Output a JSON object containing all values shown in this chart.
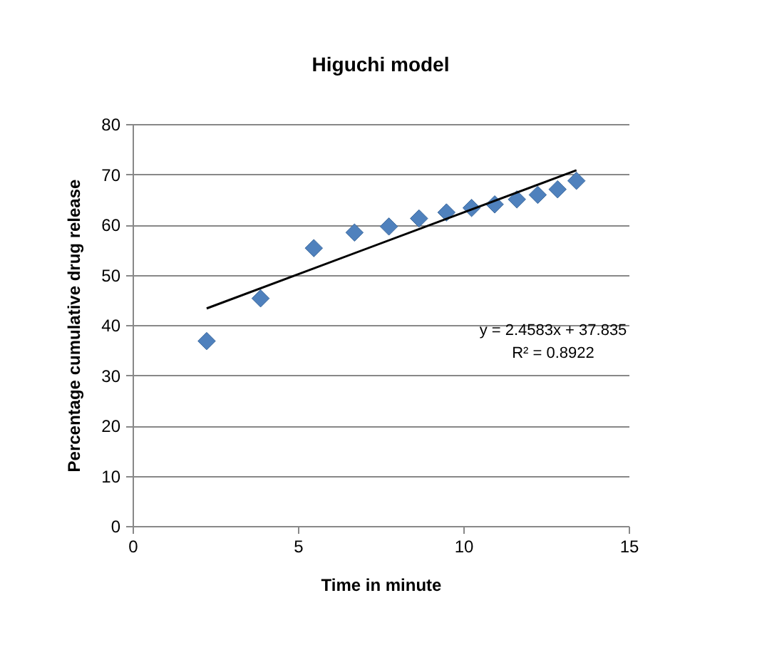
{
  "chart_data": {
    "type": "scatter",
    "title": "Higuchi model",
    "xlabel": "Time in minute",
    "ylabel": "Percentage cumulative drug release",
    "xlim": [
      0,
      15
    ],
    "xticks": [
      0,
      5,
      10,
      15
    ],
    "ylim": [
      0,
      80
    ],
    "yticks": [
      0,
      10,
      20,
      30,
      40,
      50,
      60,
      70,
      80
    ],
    "grid": "y",
    "series": [
      {
        "type": "scatter",
        "marker": "diamond",
        "color": "#4f81bd",
        "x": [
          2.24,
          3.87,
          5.48,
          6.71,
          7.75,
          8.66,
          9.49,
          10.25,
          10.95,
          11.62,
          12.25,
          12.85,
          13.42
        ],
        "values": [
          36.8,
          45.3,
          55.3,
          58.4,
          59.6,
          61.2,
          62.4,
          63.3,
          64.0,
          65.0,
          65.9,
          67.0,
          68.7
        ]
      },
      {
        "type": "line",
        "color": "#000000",
        "x": [
          2.24,
          13.42
        ],
        "values": [
          43.3,
          70.8
        ]
      }
    ],
    "annotations": [
      "y = 2.4583x + 37.835",
      "R² = 0.8922"
    ]
  }
}
